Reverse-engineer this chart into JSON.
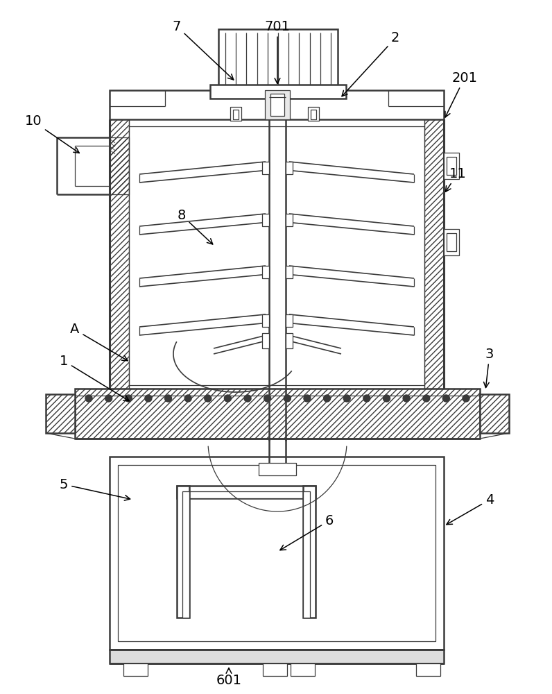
{
  "bg_color": "#ffffff",
  "lc": "#3a3a3a",
  "lw_main": 1.8,
  "lw_thin": 0.9,
  "lw_thick": 2.2
}
